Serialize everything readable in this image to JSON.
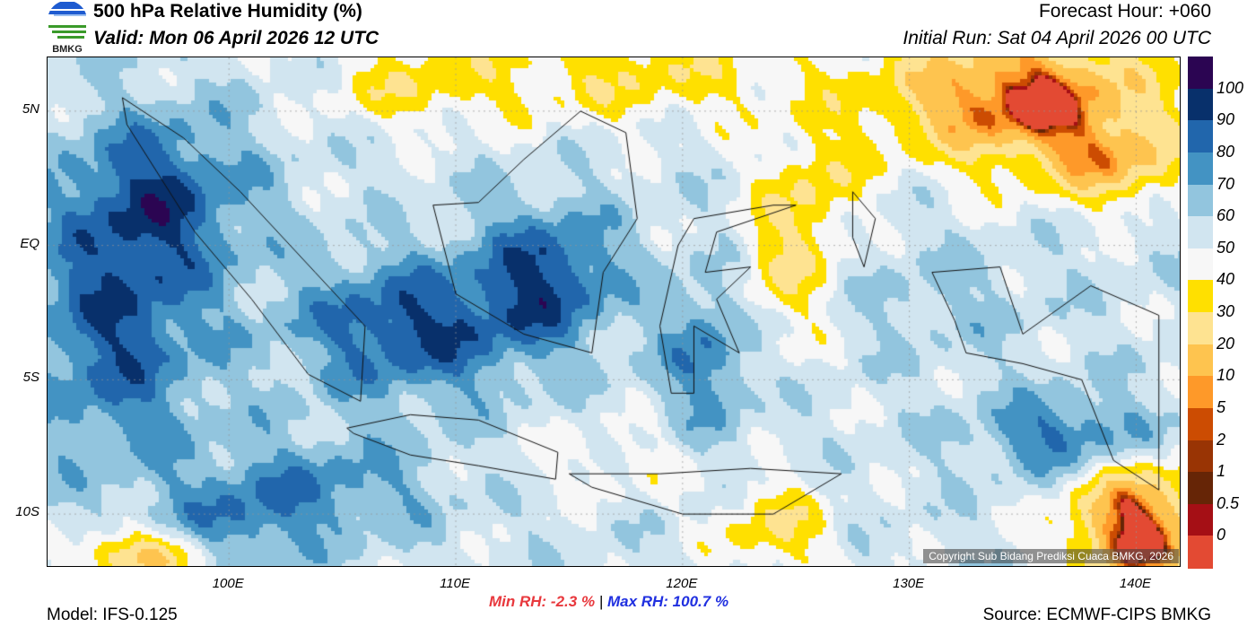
{
  "header": {
    "title": "500 hPa Relative Humidity (%)",
    "valid": "Valid: Mon 06 April 2026 12 UTC",
    "forecast_hour": "Forecast Hour: +060",
    "initial_run": "Initial Run: Sat 04 April 2026 00 UTC",
    "logo_text": "BMKG"
  },
  "map": {
    "lon_range": [
      92,
      142
    ],
    "lat_range": [
      -12,
      7
    ],
    "lat_labels": [
      {
        "value": 5,
        "label": "5N"
      },
      {
        "value": 0,
        "label": "EQ"
      },
      {
        "value": -5,
        "label": "5S"
      },
      {
        "value": -10,
        "label": "10S"
      }
    ],
    "lon_labels": [
      {
        "value": 100,
        "label": "100E"
      },
      {
        "value": 110,
        "label": "110E"
      },
      {
        "value": 120,
        "label": "120E"
      },
      {
        "value": 130,
        "label": "130E"
      },
      {
        "value": 140,
        "label": "140E"
      }
    ],
    "copyright": "Copyright Sub Bidang Prediksi Cuaca BMKG, 2026"
  },
  "colorbar": {
    "labels": [
      "100",
      "90",
      "80",
      "70",
      "60",
      "50",
      "40",
      "30",
      "20",
      "10",
      "5",
      "2",
      "1",
      "0.5",
      "0"
    ],
    "colors": [
      "#2b0552",
      "#08306b",
      "#2166ac",
      "#4393c3",
      "#92c5de",
      "#d1e5f0",
      "#f7f7f7",
      "#ffe000",
      "#fee391",
      "#fec44f",
      "#fe9929",
      "#cc4c02",
      "#993404",
      "#662506",
      "#a50f15",
      "#e34a33"
    ],
    "thresholds": [
      100,
      90,
      80,
      70,
      60,
      50,
      40,
      30,
      20,
      10,
      5,
      2,
      1,
      0.5,
      0
    ]
  },
  "footer": {
    "min_rh": "Min RH:  -2.3 %",
    "separator": "|",
    "max_rh": "Max RH: 100.7 %",
    "model": "Model: IFS-0.125",
    "source": "Source: ECMWF-CIPS BMKG",
    "min_color": "#e8383d",
    "max_color": "#2030e0"
  }
}
